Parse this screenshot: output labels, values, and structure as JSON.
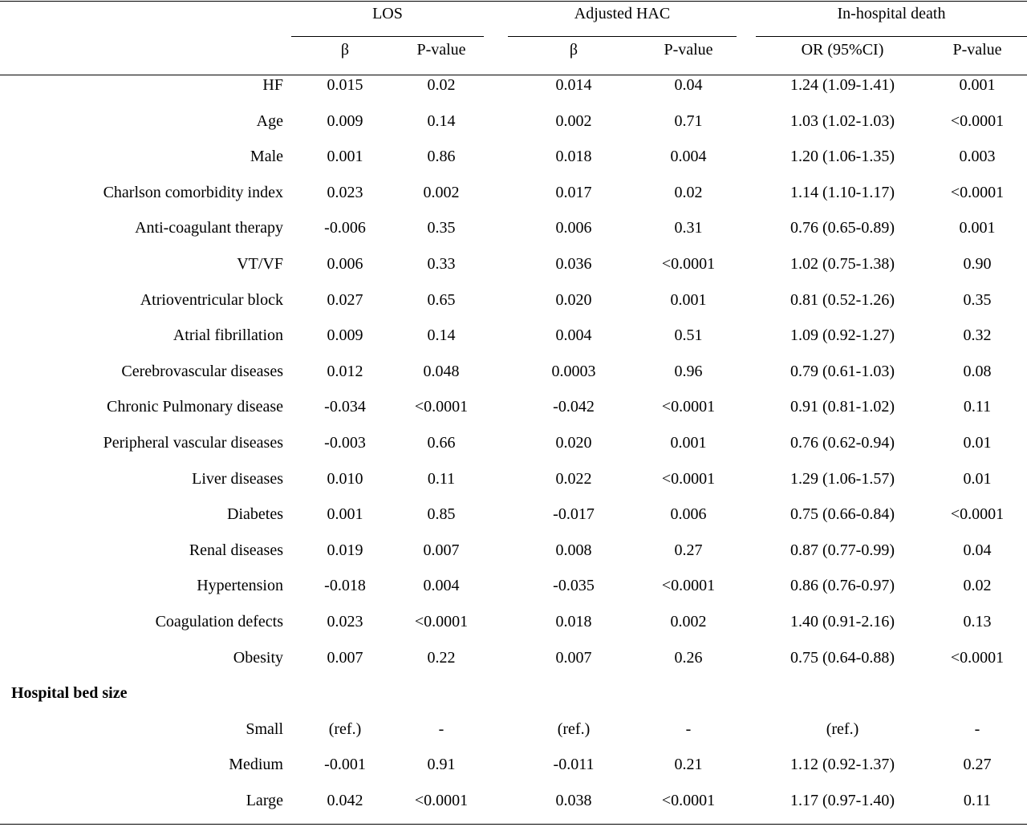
{
  "table": {
    "groups": [
      {
        "label": "LOS"
      },
      {
        "label": "Adjusted HAC"
      },
      {
        "label": "In-hospital death"
      }
    ],
    "subheaders": [
      "β",
      "P-value",
      "β",
      "P-value",
      "OR (95%CI)",
      "P-value"
    ],
    "rows": [
      {
        "label": "HF",
        "cells": [
          "0.015",
          "0.02",
          "0.014",
          "0.04",
          "1.24 (1.09-1.41)",
          "0.001"
        ]
      },
      {
        "label": "Age",
        "cells": [
          "0.009",
          "0.14",
          "0.002",
          "0.71",
          "1.03 (1.02-1.03)",
          "<0.0001"
        ]
      },
      {
        "label": "Male",
        "cells": [
          "0.001",
          "0.86",
          "0.018",
          "0.004",
          "1.20 (1.06-1.35)",
          "0.003"
        ]
      },
      {
        "label": "Charlson comorbidity index",
        "cells": [
          "0.023",
          "0.002",
          "0.017",
          "0.02",
          "1.14 (1.10-1.17)",
          "<0.0001"
        ]
      },
      {
        "label": "Anti-coagulant therapy",
        "cells": [
          "-0.006",
          "0.35",
          "0.006",
          "0.31",
          "0.76 (0.65-0.89)",
          "0.001"
        ]
      },
      {
        "label": "VT/VF",
        "cells": [
          "0.006",
          "0.33",
          "0.036",
          "<0.0001",
          "1.02 (0.75-1.38)",
          "0.90"
        ]
      },
      {
        "label": "Atrioventricular block",
        "cells": [
          "0.027",
          "0.65",
          "0.020",
          "0.001",
          "0.81 (0.52-1.26)",
          "0.35"
        ]
      },
      {
        "label": "Atrial fibrillation",
        "cells": [
          "0.009",
          "0.14",
          "0.004",
          "0.51",
          "1.09 (0.92-1.27)",
          "0.32"
        ]
      },
      {
        "label": "Cerebrovascular diseases",
        "cells": [
          "0.012",
          "0.048",
          "0.0003",
          "0.96",
          "0.79 (0.61-1.03)",
          "0.08"
        ]
      },
      {
        "label": "Chronic Pulmonary disease",
        "cells": [
          "-0.034",
          "<0.0001",
          "-0.042",
          "<0.0001",
          "0.91 (0.81-1.02)",
          "0.11"
        ]
      },
      {
        "label": "Peripheral vascular diseases",
        "cells": [
          "-0.003",
          "0.66",
          "0.020",
          "0.001",
          "0.76 (0.62-0.94)",
          "0.01"
        ]
      },
      {
        "label": "Liver diseases",
        "cells": [
          "0.010",
          "0.11",
          "0.022",
          "<0.0001",
          "1.29 (1.06-1.57)",
          "0.01"
        ]
      },
      {
        "label": "Diabetes",
        "cells": [
          "0.001",
          "0.85",
          "-0.017",
          "0.006",
          "0.75 (0.66-0.84)",
          "<0.0001"
        ]
      },
      {
        "label": "Renal diseases",
        "cells": [
          "0.019",
          "0.007",
          "0.008",
          "0.27",
          "0.87 (0.77-0.99)",
          "0.04"
        ]
      },
      {
        "label": "Hypertension",
        "cells": [
          "-0.018",
          "0.004",
          "-0.035",
          "<0.0001",
          "0.86 (0.76-0.97)",
          "0.02"
        ]
      },
      {
        "label": "Coagulation defects",
        "cells": [
          "0.023",
          "<0.0001",
          "0.018",
          "0.002",
          "1.40 (0.91-2.16)",
          "0.13"
        ]
      },
      {
        "label": "Obesity",
        "cells": [
          "0.007",
          "0.22",
          "0.007",
          "0.26",
          "0.75 (0.64-0.88)",
          "<0.0001"
        ]
      }
    ],
    "section": {
      "title": "Hospital bed size",
      "rows": [
        {
          "label": "Small",
          "cells": [
            "(ref.)",
            "-",
            "(ref.)",
            "-",
            "(ref.)",
            "-"
          ]
        },
        {
          "label": "Medium",
          "cells": [
            "-0.001",
            "0.91",
            "-0.011",
            "0.21",
            "1.12 (0.92-1.37)",
            "0.27"
          ]
        },
        {
          "label": "Large",
          "cells": [
            "0.042",
            "<0.0001",
            "0.038",
            "<0.0001",
            "1.17 (0.97-1.40)",
            "0.11"
          ]
        }
      ]
    }
  }
}
